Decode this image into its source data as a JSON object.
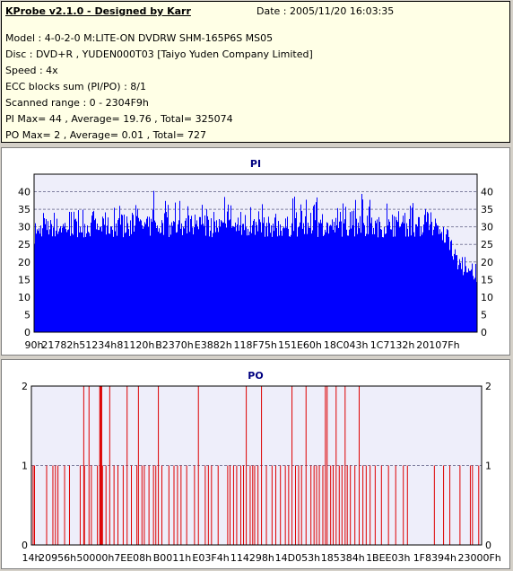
{
  "info": {
    "title": "KProbe v2.1.0 - Designed by Karr",
    "date": "Date : 2005/11/20 16:03:35",
    "lines": [
      "Model : 4-0-2-0 M:LITE-ON DVDRW SHM-165P6S MS05",
      "Disc : DVD+R , YUDEN000T03 [Taiyo Yuden Company Limited]",
      "Speed : 4x",
      "ECC blocks sum (PI/PO) : 8/1",
      "Scanned range : 0 - 2304F9h",
      "PI Max= 44 , Average= 19.76 , Total= 325074",
      "PO Max= 2 , Average= 0.01 , Total= 727"
    ]
  },
  "colors": {
    "pi_fill": "#0000ff",
    "po_line": "#dd0000",
    "plot_bg": "#eeeefa",
    "title": "#000080"
  },
  "chart_data": [
    {
      "type": "area",
      "title": "PI",
      "ylim": [
        0,
        45
      ],
      "yticks": [
        0,
        5,
        10,
        15,
        20,
        25,
        30,
        35,
        40
      ],
      "xlim": [
        0,
        2304761
      ],
      "xtick_labels": [
        "90h",
        "21782h",
        "51234h",
        "81120h",
        "B2370h",
        "E3882h",
        "118F75h",
        "151E60h",
        "18C043h",
        "1C7132h",
        "20107Fh"
      ],
      "xtick_values": [
        144,
        137090,
        332340,
        528672,
        729968,
        931970,
        1150837,
        1383008,
        1622083,
        1864000,
        2101375
      ],
      "grid": "horizontal dashed",
      "baseline_band": [
        27,
        33
      ],
      "x": [
        0,
        50000,
        100000,
        150000,
        200000,
        250000,
        300000,
        350000,
        400000,
        450000,
        500000,
        550000,
        600000,
        650000,
        700000,
        750000,
        800000,
        850000,
        900000,
        950000,
        1000000,
        1050000,
        1100000,
        1150000,
        1200000,
        1250000,
        1300000,
        1350000,
        1400000,
        1450000,
        1500000,
        1550000,
        1600000,
        1650000,
        1700000,
        1750000,
        1800000,
        1850000,
        1900000,
        1950000,
        2000000,
        2050000,
        2100000,
        2150000,
        2200000,
        2250000,
        2304761
      ],
      "peaks": [
        31,
        35,
        34,
        36,
        34,
        37,
        35,
        34,
        36,
        37,
        36,
        44,
        40,
        42,
        38,
        40,
        36,
        39,
        36,
        42,
        39,
        38,
        40,
        38,
        37,
        36,
        36,
        40,
        38,
        39,
        40,
        39,
        37,
        36,
        40,
        38,
        37,
        38,
        37,
        38,
        36,
        35,
        33,
        30,
        24,
        21,
        20
      ]
    },
    {
      "type": "bar",
      "title": "PO",
      "ylim": [
        0,
        2
      ],
      "yticks": [
        0,
        1,
        2
      ],
      "xlim": [
        0,
        2304761
      ],
      "xtick_labels": [
        "14h",
        "20956h",
        "50000h",
        "7EE08h",
        "B0011h",
        "E03F4h",
        "114298h",
        "14D053h",
        "185384h",
        "1BEE03h",
        "1F8394h",
        "23000Fh"
      ],
      "xtick_values": [
        20,
        133462,
        327680,
        519688,
        720913,
        918516,
        1131160,
        1363027,
        1594244,
        1826307,
        2065300,
        2293775
      ],
      "x": [
        9000,
        16000,
        78000,
        110000,
        123000,
        136000,
        170000,
        195000,
        250000,
        268000,
        272000,
        295000,
        307000,
        338000,
        350000,
        354000,
        357000,
        360000,
        364000,
        382000,
        401000,
        423000,
        443000,
        470000,
        490000,
        512000,
        540000,
        548000,
        566000,
        578000,
        602000,
        625000,
        637000,
        650000,
        668000,
        704000,
        730000,
        748000,
        766000,
        795000,
        835000,
        855000,
        890000,
        906000,
        922000,
        956000,
        1005000,
        1017000,
        1035000,
        1051000,
        1072000,
        1086000,
        1100000,
        1120000,
        1133000,
        1143000,
        1160000,
        1178000,
        1203000,
        1232000,
        1251000,
        1275000,
        1300000,
        1317000,
        1334000,
        1352000,
        1368000,
        1383000,
        1406000,
        1431000,
        1447000,
        1460000,
        1474000,
        1492000,
        1505000,
        1514000,
        1532000,
        1545000,
        1560000,
        1576000,
        1590000,
        1606000,
        1617000,
        1633000,
        1656000,
        1678000,
        1697000,
        1714000,
        1734000,
        1760000,
        1792000,
        1828000,
        1865000,
        1904000,
        1925000,
        2063000,
        2110000,
        2142000,
        2194000,
        2247000,
        2258000,
        2290000
      ],
      "values": [
        1,
        1,
        1,
        1,
        1,
        1,
        1,
        1,
        1,
        2,
        1,
        2,
        1,
        1,
        2,
        2,
        2,
        2,
        1,
        1,
        2,
        1,
        1,
        1,
        2,
        1,
        1,
        2,
        1,
        1,
        1,
        1,
        1,
        2,
        1,
        1,
        1,
        1,
        1,
        1,
        1,
        2,
        1,
        1,
        1,
        1,
        1,
        1,
        1,
        1,
        1,
        1,
        2,
        1,
        1,
        1,
        1,
        2,
        1,
        1,
        1,
        1,
        1,
        1,
        2,
        1,
        1,
        1,
        2,
        1,
        1,
        1,
        1,
        1,
        2,
        2,
        1,
        1,
        2,
        1,
        1,
        2,
        1,
        1,
        1,
        2,
        1,
        1,
        1,
        1,
        1,
        1,
        1,
        1,
        1,
        1,
        1,
        1,
        1,
        1,
        1,
        1
      ]
    }
  ]
}
